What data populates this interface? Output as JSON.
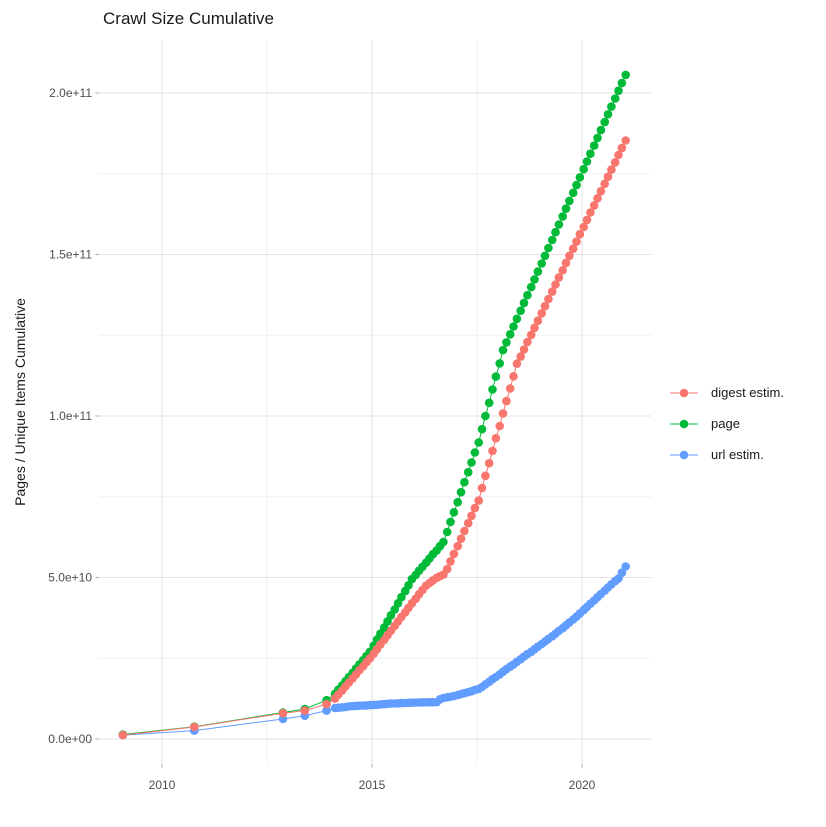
{
  "page": {
    "background": "#ffffff"
  },
  "chart": {
    "title": "Crawl Size Cumulative",
    "legend": {
      "position": "right",
      "items": [
        {
          "label": "digest estim.",
          "color": "#F8766D"
        },
        {
          "label": "page",
          "color": "#00BA38"
        },
        {
          "label": "url estim.",
          "color": "#619CFF"
        }
      ]
    },
    "x_axis": {
      "ticks": [
        {
          "label": "2010",
          "year": 2010
        },
        {
          "label": "2015",
          "year": 2015
        },
        {
          "label": "2020",
          "year": 2020
        }
      ],
      "minor_years": [
        2012.5,
        2017.5
      ]
    },
    "y_axis": {
      "title": "Pages / Unique Items Cumulative",
      "ticks": [
        {
          "label": "0.0e+00",
          "value_e9": 0
        },
        {
          "label": "5.0e+10",
          "value_e9": 50
        },
        {
          "label": "1.0e+11",
          "value_e9": 100
        },
        {
          "label": "1.5e+11",
          "value_e9": 150
        },
        {
          "label": "2.0e+11",
          "value_e9": 200
        }
      ],
      "minor_values_e9": [
        25,
        75,
        125,
        175
      ]
    }
  },
  "chart_data": {
    "type": "scatter",
    "title": "Crawl Size Cumulative",
    "xlabel": "",
    "ylabel": "Pages / Unique Items Cumulative",
    "x_unit": "decimal year",
    "y_unit": "count (values in billions, 1 = 1e9)",
    "x_domain": [
      2008.5,
      2021.6
    ],
    "ylim_e9": [
      -8,
      216
    ],
    "grid": true,
    "legend_position": "right",
    "marker_style": "point-with-line",
    "x": [
      2009.07,
      2010.77,
      2012.88,
      2013.4,
      2013.92,
      2014.12,
      2014.2,
      2014.29,
      2014.37,
      2014.45,
      2014.54,
      2014.62,
      2014.7,
      2014.79,
      2014.87,
      2014.95,
      2015.04,
      2015.12,
      2015.2,
      2015.29,
      2015.37,
      2015.45,
      2015.54,
      2015.62,
      2015.7,
      2015.79,
      2015.87,
      2015.95,
      2016.04,
      2016.12,
      2016.2,
      2016.29,
      2016.37,
      2016.45,
      2016.54,
      2016.62,
      2016.7,
      2016.79,
      2016.87,
      2016.95,
      2017.04,
      2017.12,
      2017.2,
      2017.29,
      2017.37,
      2017.45,
      2017.54,
      2017.62,
      2017.7,
      2017.79,
      2017.87,
      2017.95,
      2018.04,
      2018.12,
      2018.2,
      2018.29,
      2018.37,
      2018.45,
      2018.54,
      2018.62,
      2018.7,
      2018.79,
      2018.87,
      2018.95,
      2019.04,
      2019.12,
      2019.2,
      2019.29,
      2019.37,
      2019.45,
      2019.54,
      2019.62,
      2019.7,
      2019.79,
      2019.87,
      2019.95,
      2020.04,
      2020.12,
      2020.2,
      2020.29,
      2020.37,
      2020.45,
      2020.54,
      2020.62,
      2020.7,
      2020.79,
      2020.87,
      2020.95,
      2021.04
    ],
    "series": [
      {
        "name": "digest estim.",
        "color": "#F8766D",
        "y_e9": [
          1.2,
          3.7,
          8.0,
          8.8,
          10.8,
          12.5,
          13.8,
          15.0,
          16.3,
          17.5,
          18.8,
          20.0,
          21.3,
          22.5,
          23.8,
          25.0,
          26.4,
          27.8,
          29.3,
          30.7,
          32.1,
          33.5,
          35.0,
          36.4,
          37.8,
          39.2,
          40.6,
          42.0,
          43.4,
          44.8,
          46.1,
          47.5,
          48.3,
          49.1,
          49.9,
          50.4,
          50.9,
          52.6,
          55.0,
          57.3,
          59.7,
          62.0,
          64.4,
          66.8,
          69.1,
          71.5,
          73.8,
          77.7,
          81.5,
          85.4,
          89.2,
          93.1,
          96.9,
          100.8,
          104.6,
          108.5,
          112.3,
          116.2,
          118.4,
          120.6,
          122.9,
          125.1,
          127.3,
          129.5,
          131.8,
          134.0,
          136.2,
          138.5,
          140.7,
          142.9,
          145.1,
          147.4,
          149.6,
          151.8,
          154.0,
          156.3,
          158.5,
          160.7,
          163.0,
          165.2,
          167.4,
          169.6,
          171.9,
          174.1,
          176.3,
          178.5,
          180.8,
          183.0,
          185.3
        ]
      },
      {
        "name": "page",
        "color": "#00BA38",
        "y_e9": [
          1.4,
          3.8,
          8.2,
          9.3,
          12.0,
          14.0,
          15.3,
          16.6,
          17.9,
          19.2,
          20.5,
          21.8,
          23.1,
          24.4,
          25.7,
          27.0,
          28.9,
          30.8,
          32.6,
          34.5,
          36.4,
          38.3,
          40.1,
          42.0,
          43.9,
          45.8,
          47.6,
          49.5,
          50.8,
          52.1,
          53.3,
          54.6,
          55.9,
          57.2,
          58.4,
          59.7,
          61.0,
          64.1,
          67.2,
          70.2,
          73.3,
          76.4,
          79.5,
          82.6,
          85.6,
          88.7,
          91.8,
          95.9,
          100.0,
          104.1,
          108.2,
          112.2,
          116.3,
          120.4,
          122.8,
          125.3,
          127.7,
          130.1,
          132.6,
          135.0,
          137.4,
          139.9,
          142.3,
          144.7,
          147.2,
          149.6,
          152.0,
          154.5,
          156.9,
          159.3,
          161.8,
          164.2,
          166.6,
          169.1,
          171.5,
          173.9,
          176.4,
          178.8,
          181.2,
          183.7,
          186.1,
          188.5,
          191.0,
          193.4,
          195.8,
          198.3,
          200.7,
          203.1,
          205.6
        ]
      },
      {
        "name": "url estim.",
        "color": "#619CFF",
        "y_e9": [
          1.2,
          2.6,
          6.2,
          7.2,
          8.8,
          9.6,
          9.7,
          9.8,
          9.9,
          10.1,
          10.2,
          10.25,
          10.3,
          10.35,
          10.4,
          10.5,
          10.55,
          10.6,
          10.7,
          10.8,
          10.9,
          11.0,
          11.0,
          11.05,
          11.1,
          11.15,
          11.2,
          11.25,
          11.3,
          11.3,
          11.35,
          11.35,
          11.4,
          11.4,
          11.4,
          12.3,
          12.7,
          12.9,
          13.1,
          13.3,
          13.6,
          13.9,
          14.2,
          14.5,
          14.8,
          15.2,
          15.5,
          16.1,
          16.9,
          17.7,
          18.5,
          19.2,
          20.0,
          20.8,
          21.6,
          22.4,
          23.1,
          23.9,
          24.7,
          25.5,
          26.3,
          27.0,
          27.8,
          28.6,
          29.4,
          30.2,
          31.0,
          31.8,
          32.6,
          33.5,
          34.3,
          35.2,
          36.1,
          37.0,
          37.9,
          38.9,
          39.9,
          40.9,
          41.9,
          42.9,
          43.9,
          44.9,
          45.9,
          46.9,
          47.9,
          48.9,
          49.7,
          51.5,
          53.4
        ]
      }
    ]
  }
}
